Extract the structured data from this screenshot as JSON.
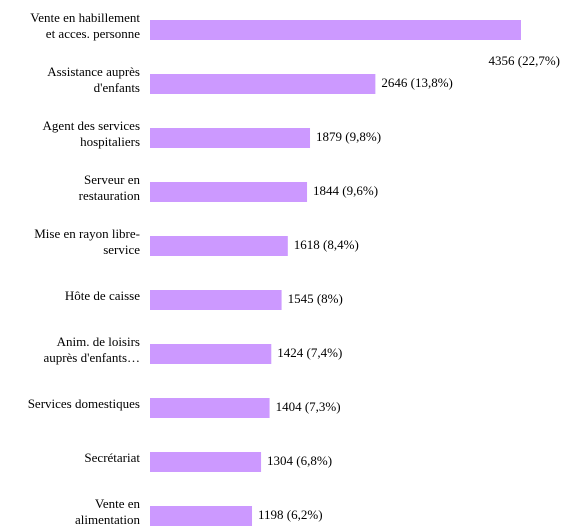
{
  "chart_data": {
    "type": "bar",
    "orientation": "horizontal",
    "categories": [
      [
        "Vente en habillement",
        "et acces. personne"
      ],
      [
        "Assistance auprès",
        "d'enfants"
      ],
      [
        "Agent des services",
        "hospitaliers"
      ],
      [
        "Serveur en",
        "restauration"
      ],
      [
        "Mise en rayon libre-",
        "service"
      ],
      [
        "Hôte de caisse"
      ],
      [
        "Anim. de loisirs",
        "auprès d'enfants…"
      ],
      [
        "Services domestiques"
      ],
      [
        "Secrétariat"
      ],
      [
        "Vente en",
        "alimentation"
      ]
    ],
    "values": [
      4356,
      2646,
      1879,
      1844,
      1618,
      1545,
      1424,
      1404,
      1304,
      1198
    ],
    "value_labels": [
      "4356 (22,7%)",
      "2646 (13,8%)",
      "1879 (9,8%)",
      "1844 (9,6%)",
      "1618 (8,4%)",
      "1545 (8%)",
      "1424 (7,4%)",
      "1404 (7,3%)",
      "1304 (6,8%)",
      "1198 (6,2%)"
    ],
    "color": "#cc99ff"
  }
}
